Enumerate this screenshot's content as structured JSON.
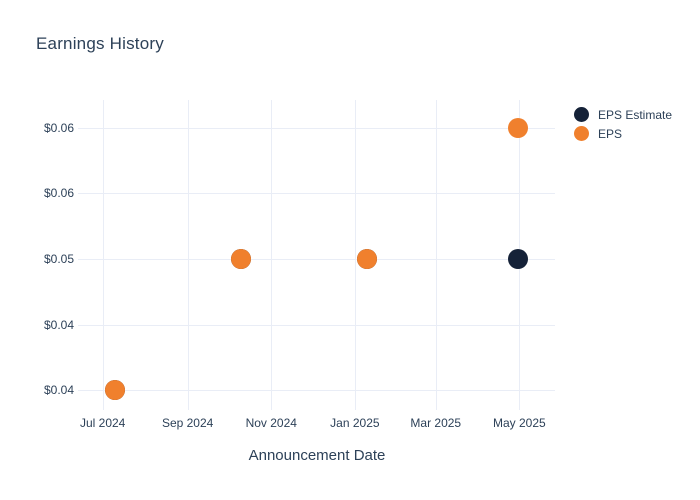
{
  "title": "Earnings History",
  "colors": {
    "background": "#ffffff",
    "grid": "#e9edf6",
    "text": "#2d4158",
    "eps_estimate": "#152238",
    "eps": "#f0802d"
  },
  "chart_data": {
    "type": "scatter",
    "title": "Earnings History",
    "xlabel": "Announcement Date",
    "ylabel": "",
    "grid": true,
    "legend_position": "right",
    "xlim": [
      "2024-06-13",
      "2025-05-27"
    ],
    "ylim": [
      0.0385,
      0.0621
    ],
    "x_ticks": [
      {
        "date": "2024-07-01",
        "label": "Jul 2024"
      },
      {
        "date": "2024-09-01",
        "label": "Sep 2024"
      },
      {
        "date": "2024-11-01",
        "label": "Nov 2024"
      },
      {
        "date": "2025-01-01",
        "label": "Jan 2025"
      },
      {
        "date": "2025-03-01",
        "label": "Mar 2025"
      },
      {
        "date": "2025-05-01",
        "label": "May 2025"
      }
    ],
    "y_ticks": [
      {
        "value": 0.04,
        "label": "$0.04"
      },
      {
        "value": 0.045,
        "label": "$0.04"
      },
      {
        "value": 0.05,
        "label": "$0.05"
      },
      {
        "value": 0.055,
        "label": "$0.06"
      },
      {
        "value": 0.06,
        "label": "$0.06"
      }
    ],
    "marker_size_px": 20,
    "series": [
      {
        "name": "EPS Estimate",
        "color": "#152238",
        "points": [
          {
            "x": "2024-07-10",
            "y": 0.04
          },
          {
            "x": "2024-10-10",
            "y": 0.05
          },
          {
            "x": "2025-01-10",
            "y": 0.05
          },
          {
            "x": "2025-04-30",
            "y": 0.05
          }
        ]
      },
      {
        "name": "EPS",
        "color": "#f0802d",
        "points": [
          {
            "x": "2024-07-10",
            "y": 0.04
          },
          {
            "x": "2024-10-10",
            "y": 0.05
          },
          {
            "x": "2025-01-10",
            "y": 0.05
          },
          {
            "x": "2025-04-30",
            "y": 0.06
          }
        ]
      }
    ]
  }
}
